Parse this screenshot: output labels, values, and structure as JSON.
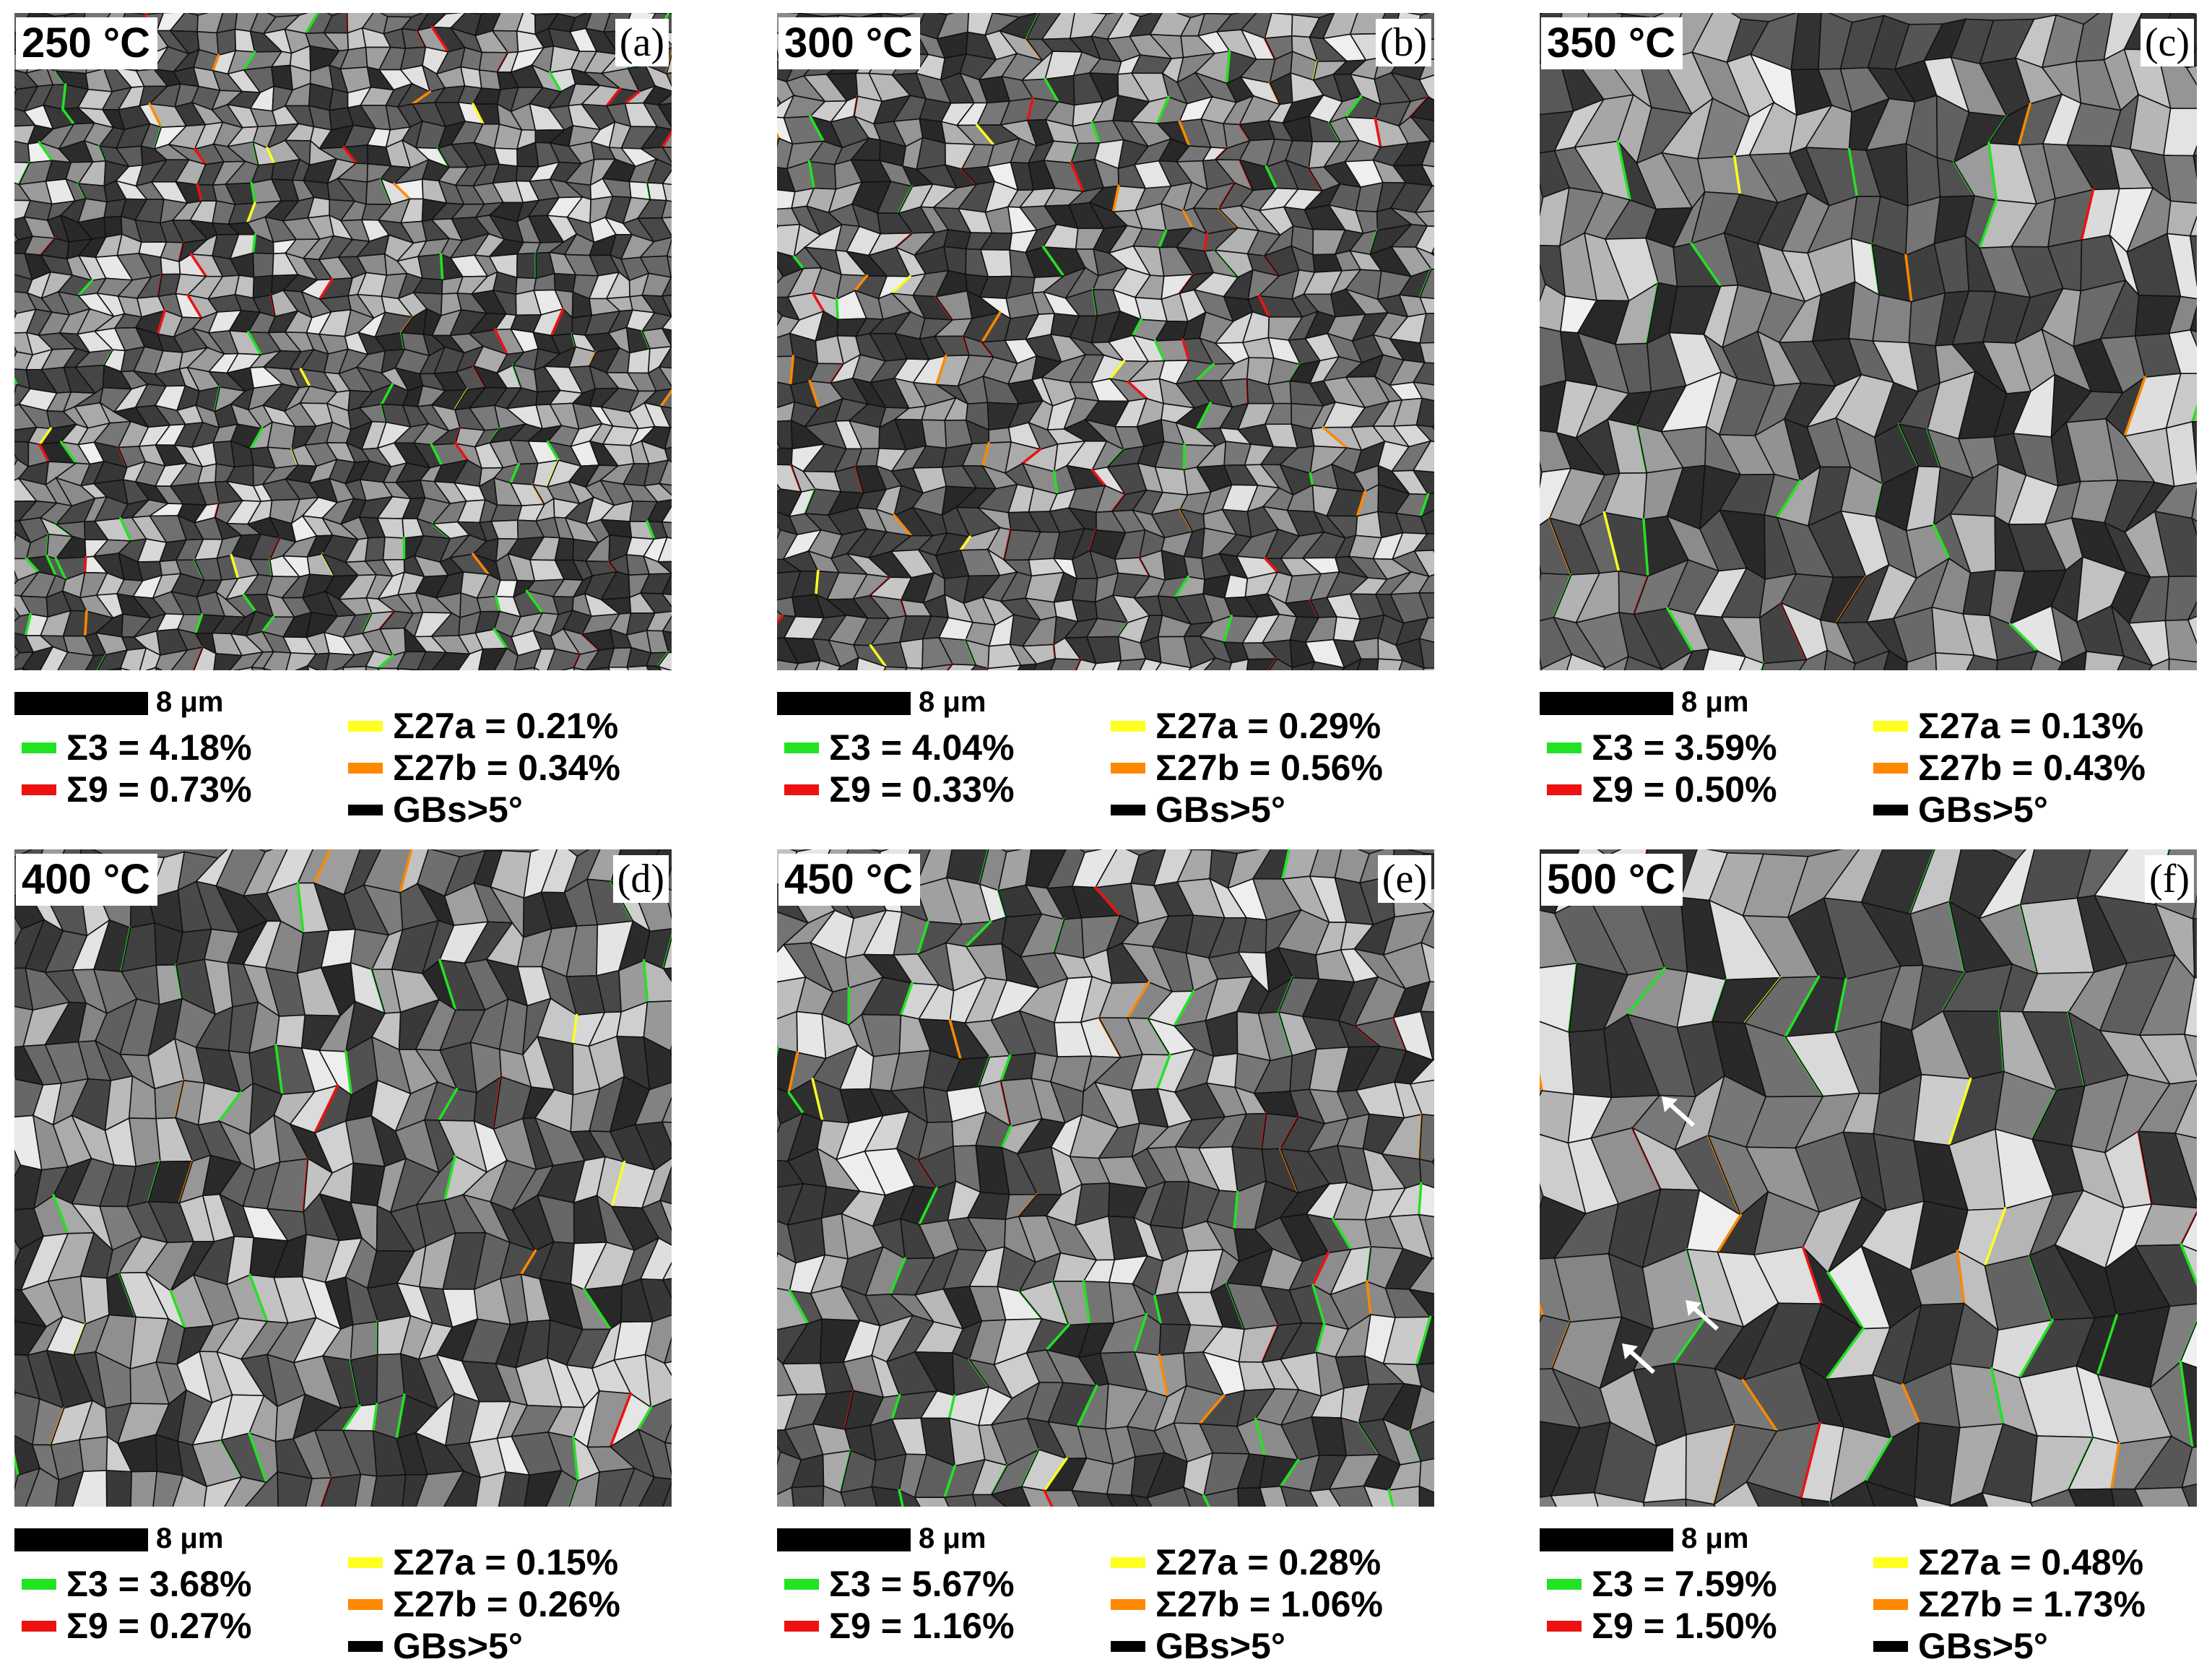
{
  "colors": {
    "sigma3": "#22e322",
    "sigma9": "#ee1111",
    "sigma27a": "#ffff22",
    "sigma27b": "#ff8800",
    "gb": "#000000"
  },
  "scale_bar_label": "8 μm",
  "gb_label": "GBs>5°",
  "panels": [
    {
      "temp": "250 °C",
      "letter": "(a)",
      "s3": "Σ3 = 4.18%",
      "s9": "Σ9 = 0.73%",
      "s27a": "Σ27a = 0.21%",
      "s27b": "Σ27b = 0.34%"
    },
    {
      "temp": "300 °C",
      "letter": "(b)",
      "s3": "Σ3 = 4.04%",
      "s9": "Σ9 = 0.33%",
      "s27a": "Σ27a = 0.29%",
      "s27b": "Σ27b = 0.56%"
    },
    {
      "temp": "350 °C",
      "letter": "(c)",
      "s3": "Σ3 = 3.59%",
      "s9": "Σ9 = 0.50%",
      "s27a": "Σ27a = 0.13%",
      "s27b": "Σ27b = 0.43%"
    },
    {
      "temp": "400 °C",
      "letter": "(d)",
      "s3": "Σ3 = 3.68%",
      "s9": "Σ9 = 0.27%",
      "s27a": "Σ27a = 0.15%",
      "s27b": "Σ27b = 0.26%"
    },
    {
      "temp": "450 °C",
      "letter": "(e)",
      "s3": "Σ3 = 5.67%",
      "s9": "Σ9 = 1.16%",
      "s27a": "Σ27a = 0.28%",
      "s27b": "Σ27b = 1.06%"
    },
    {
      "temp": "500 °C",
      "letter": "(f)",
      "s3": "Σ3 = 7.59%",
      "s9": "Σ9 = 1.50%",
      "s27a": "Σ27a = 0.48%",
      "s27b": "Σ27b = 1.73%"
    }
  ]
}
